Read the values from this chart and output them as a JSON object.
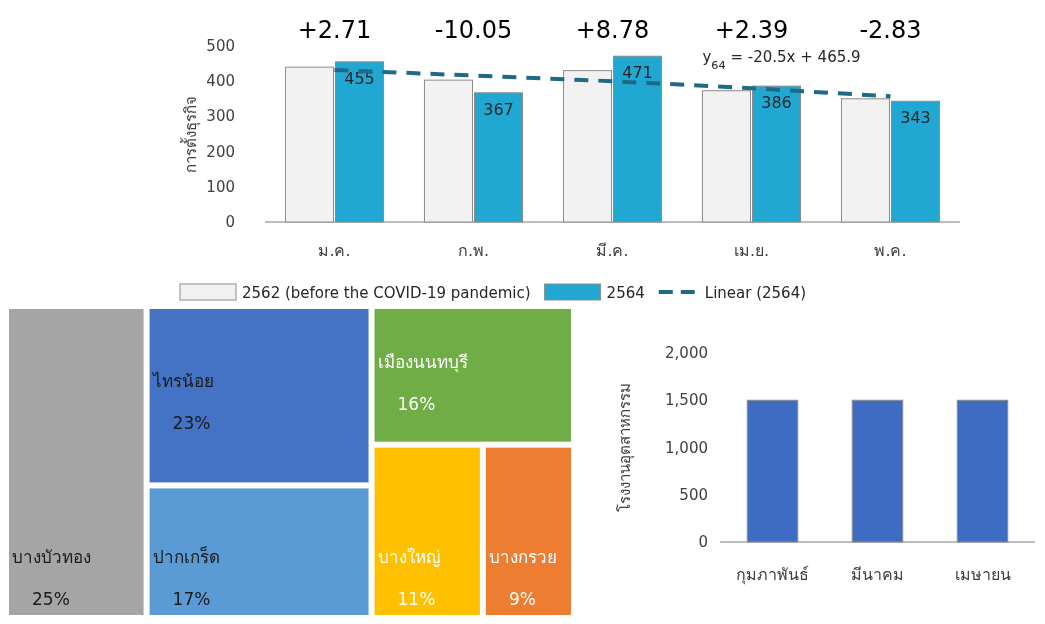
{
  "chart_data": [
    {
      "type": "bar",
      "ylabel": "การตั้งธุรกิจ",
      "categories": [
        "ม.ค.",
        "ก.พ.",
        "มี.ค.",
        "เม.ย.",
        "พ.ค."
      ],
      "series": [
        {
          "name": "2562 (before the COVID-19 pandemic)",
          "color": "#f2f2f2",
          "values": [
            440,
            403,
            430,
            373,
            350
          ]
        },
        {
          "name": "2564",
          "color": "#20a8d2",
          "values": [
            455,
            367,
            471,
            386,
            343
          ],
          "value_labels": [
            "455",
            "367",
            "471",
            "386",
            "343"
          ]
        },
        {
          "name": "Linear (2564)",
          "type": "line",
          "line_style": "dashed",
          "color": "#1f6a85",
          "values": [
            432,
            416,
            400,
            380,
            357
          ]
        }
      ],
      "ylim": [
        0,
        500
      ],
      "yticks": [
        0,
        100,
        200,
        300,
        400,
        500
      ],
      "legend": "bottom",
      "annotations": [
        "+2.71",
        "-10.05",
        "+8.78",
        "+2.39",
        "-2.83",
        {
          "text": "y$_{64}$ = -20.5x + 465.9",
          "x": "เม.ย.",
          "y": 380
        }
      ]
    },
    {
      "type": "other",
      "categories": [
        "บางบัวทอง",
        "ไทรน้อย",
        "ปากเกร็ด",
        "เมืองนนทบุรี",
        "บางใหญ่",
        "บางกรวย"
      ],
      "values": [
        25,
        23,
        17,
        16,
        11,
        9
      ],
      "value_labels": [
        "25%",
        "23%",
        "17%",
        "16%",
        "11%",
        "9%"
      ],
      "colors": [
        "#a5a5a5",
        "#4472c4",
        "#5b9bd5",
        "#70ad47",
        "#ffc000",
        "#ed7d31"
      ]
    },
    {
      "type": "bar",
      "ylabel": "โรงงานอุตสาหกรรม",
      "categories": [
        "กุมภาพันธ์",
        "มีนาคม",
        "เมษายน"
      ],
      "series": [
        {
          "color": "#3d6cc2",
          "values": [
            1500,
            1500,
            1500
          ]
        }
      ],
      "ylim": [
        0,
        2000
      ],
      "yticks": [
        0,
        {
          "value": 500,
          "label": "500"
        },
        {
          "value": 1000,
          "label": "1,000"
        },
        {
          "value": 1500,
          "label": "1,500"
        },
        {
          "value": 2000,
          "label": "2,000"
        }
      ]
    }
  ]
}
